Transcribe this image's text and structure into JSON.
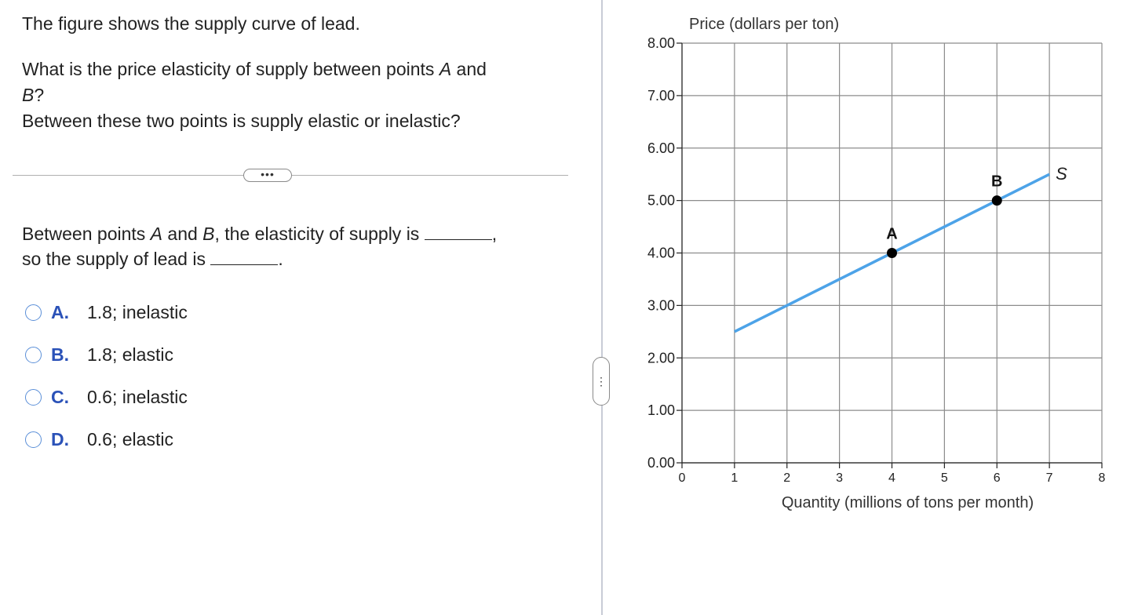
{
  "question": {
    "line1": "The figure shows the supply curve of lead.",
    "line2_pre": "What is the price elasticity of supply between points ",
    "line2_a": "A",
    "line2_mid": " and",
    "line3_b": "B",
    "line3_post": "?",
    "line4": "Between these two points is supply elastic or inelastic?"
  },
  "separator": {
    "button_label": "•••"
  },
  "answer_prompt": {
    "l1_pre": "Between points ",
    "l1_a": "A",
    "l1_mid": " and ",
    "l1_b": "B",
    "l1_post": ", the elasticity of supply is",
    "l1_end": ",",
    "l2_pre": "so the supply of lead is",
    "l2_end": "."
  },
  "options": [
    {
      "letter": "A.",
      "text": "1.8; inelastic"
    },
    {
      "letter": "B.",
      "text": "1.8; elastic"
    },
    {
      "letter": "C.",
      "text": "0.6; inelastic"
    },
    {
      "letter": "D.",
      "text": "0.6; elastic"
    }
  ],
  "pane_handle": {
    "label": "⋮"
  },
  "colors": {
    "curve": "#4da3e8",
    "grid": "#8c8c8c",
    "option_letter": "#2b52b8",
    "radio": "#5b8fd8"
  },
  "chart_data": {
    "type": "line",
    "ylabel": "Price (dollars per ton)",
    "xlabel": "Quantity (millions of tons per month)",
    "xlim": [
      0,
      8
    ],
    "ylim": [
      0,
      8
    ],
    "x_ticks": [
      "0",
      "1",
      "2",
      "3",
      "4",
      "5",
      "6",
      "7",
      "8"
    ],
    "y_ticks": [
      "0.00",
      "1.00",
      "2.00",
      "3.00",
      "4.00",
      "5.00",
      "6.00",
      "7.00",
      "8.00"
    ],
    "grid": true,
    "series": [
      {
        "name": "S",
        "x": [
          1,
          7
        ],
        "y": [
          2.5,
          5.5
        ]
      }
    ],
    "points": [
      {
        "label": "A",
        "x": 4,
        "y": 4
      },
      {
        "label": "B",
        "x": 6,
        "y": 5
      }
    ]
  }
}
